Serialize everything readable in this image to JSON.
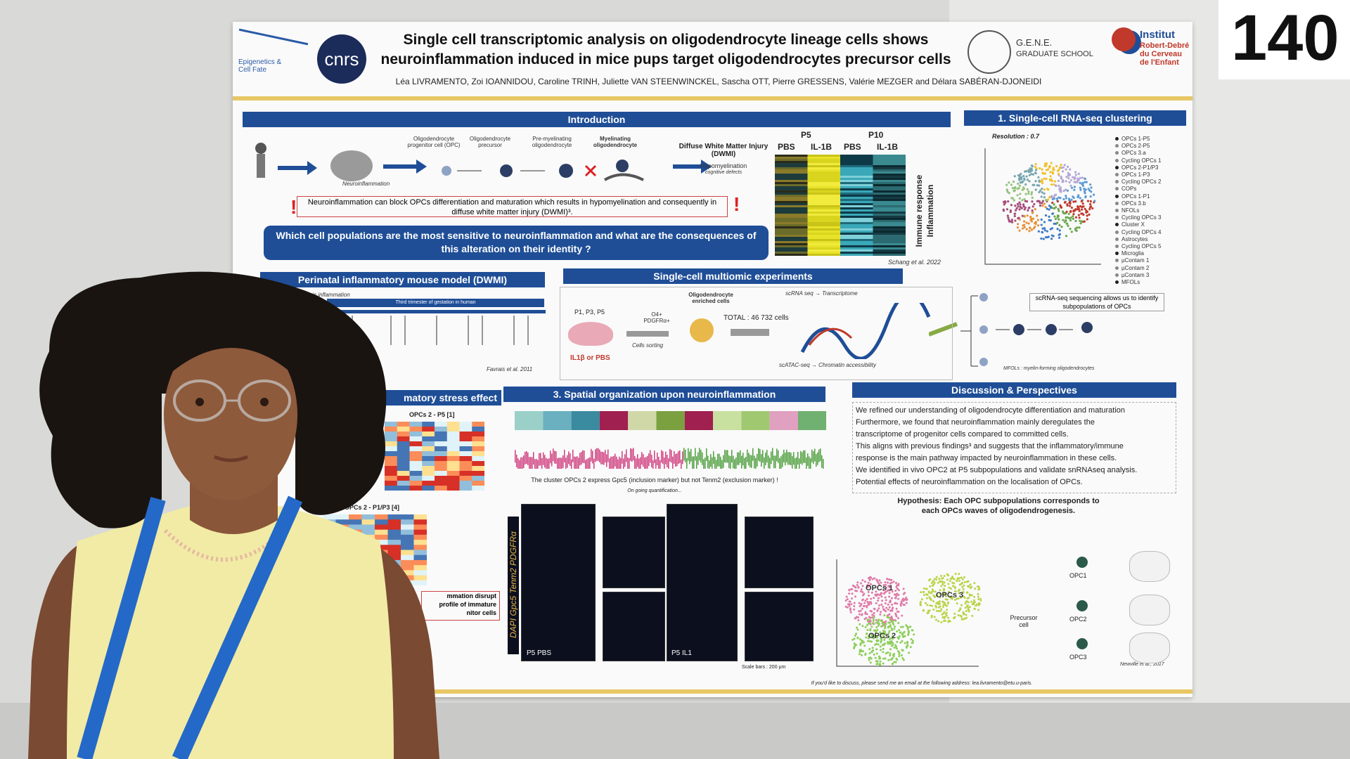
{
  "poster_number": "140",
  "header": {
    "title_line1": "Single cell transcriptomic analysis on oligodendrocyte lineage cells shows",
    "title_line2": "neuroinflammation induced in mice pups target oligodendrocytes precursor cells",
    "authors": "Léa LIVRAMENTO, Zoi IOANNIDOU, Caroline TRINH, Juliette VAN STEENWINCKEL, Sascha OTT, Pierre GRESSENS, Valérie MEZGER and Délara SABÉRAN-DJONEIDI",
    "logo_epigenetics": "Epigenetics & Cell Fate",
    "logo_cnrs": "cnrs",
    "logo_gene": "G.E.N.E.",
    "logo_gene_sub": "GRADUATE SCHOOL",
    "logo_institut": "Institut",
    "logo_institut_sub": "Robert-Debré du Cerveau de l'Enfant"
  },
  "introduction": {
    "title": "Introduction",
    "neuroinflammation": "Neuroinflammation",
    "cell_opc": "Oligodendrocyte progenitor cell (OPC)",
    "cell_precursor": "Oligodendrocyte precursor",
    "cell_premyelinating": "Pre-myelinating oligodendrocyte",
    "cell_myelinating": "Myelinating oligodendrocyte",
    "dwmi": "Diffuse White Matter Injury (DWMI)",
    "hypomyelination": "Hypomyelination",
    "cognitive": "cognitive defects",
    "statement": "Neuroinflammation can block OPCs differentiation and maturation which results in hypomyelination and consequently in diffuse white matter injury (DWMI)³.",
    "question": "Which cell populations are the most sensitive to neuroinflammation and what are the consequences of this alteration on their identity ?"
  },
  "heatmap": {
    "p5": "P5",
    "p10": "P10",
    "columns": [
      "PBS",
      "IL-1B",
      "PBS",
      "IL-1B"
    ],
    "label_immune": "Immune response",
    "label_inflammation": "Inflammation",
    "citation": "Schang et al. 2022"
  },
  "clustering": {
    "title": "1. Single-cell RNA-seq clustering",
    "resolution": "Resolution : 0.7",
    "legend": [
      "OPCs 1-P5",
      "OPCs 2-P5",
      "OPCs 3.a",
      "Cycling OPCs 1",
      "OPCs 2-P1/P3",
      "OPCs 1-P3",
      "Cycling OPCs 2",
      "COPs",
      "OPCs 1-P1",
      "OPCs 3.b",
      "NFOLs",
      "Cycling OPCs 3",
      "Cluster X",
      "Cycling OPCs 4",
      "Astrocytes",
      "Cycling OPCs 5",
      "Microglia",
      "µContam 1",
      "µContam 2",
      "µContam 3",
      "MFOLs"
    ],
    "note": "scRNA-seq sequencing allows us to identify subpopulations of OPCs",
    "mfols": "MFOLs : myelin-forming oligodendrocytes"
  },
  "model": {
    "title": "Perinatal inflammatory mouse model (DWMI)",
    "moderate": "Moderate systemic inflammation",
    "trimester": "Third trimester of gestation in human",
    "citation": "Favrais et al. 2011"
  },
  "multiomic": {
    "title": "Single-cell multiomic experiments",
    "days": "P1, P3, P5",
    "treatment": "IL1β or PBS",
    "markers": "O4+ PDGFRα+",
    "sorting": "Cells sorting",
    "enriched": "Oligodendrocyte enriched cells",
    "total": "TOTAL : 46 732 cells",
    "scrna": "scRNA seq → Transcriptome",
    "scatac": "scATAC-seq → Chromatin accessibility"
  },
  "stress": {
    "title": "matory stress effect",
    "heatmap1": "OPCs 2 - P5 [1]",
    "heatmap2": "OPCs 2 - P1/P3 [4]",
    "box_lines": [
      "mmation disrupt",
      "profile of immature",
      "nitor cells"
    ]
  },
  "spatial": {
    "title": "3. Spatial organization upon neuroinflammation",
    "caption": "The cluster OPCs 2 express Gpc5 (inclusion marker) but not Tenm2 (exclusion marker) !",
    "ongoing": "On going quantification...",
    "stain": "DAPI Gpc5 Tenm2 PDGFRα",
    "pbs": "P5 PBS",
    "il1": "P5 IL1",
    "scale": "Scale bars : 200 µm"
  },
  "discussion": {
    "title": "Discussion & Perspectives",
    "lines": [
      "We refined our understanding of oligodendrocyte differentiation and maturation",
      "Furthermore, we found that neuroinflammation mainly deregulates the",
      "transcriptome of progenitor cells compared to committed cells.",
      "This aligns with previous findings³ and suggests that the inflammatory/immune",
      "response is the main pathway impacted by neuroinflammation in these cells.",
      "We identified in vivo OPC2 at P5 subpopulations and validate snRNAseq analysis.",
      "Potential effects of neuroinflammation on the localisation of OPCs."
    ],
    "hypothesis_line1": "Hypothesis: Each OPC subpopulations corresponds to",
    "hypothesis_line2": "each OPCs waves of oligodendrogenesis.",
    "umap_labels": [
      "OPCs 1",
      "OPCs 3",
      "OPCs 2"
    ],
    "precursor": "Precursor cell",
    "opcs": [
      "OPC1",
      "OPC2",
      "OPC3"
    ],
    "citation": "Newville et al., 2017",
    "contact": "If you'd like to discuss, please send me an email at the following address: lea.livramento@etu.u-paris."
  }
}
